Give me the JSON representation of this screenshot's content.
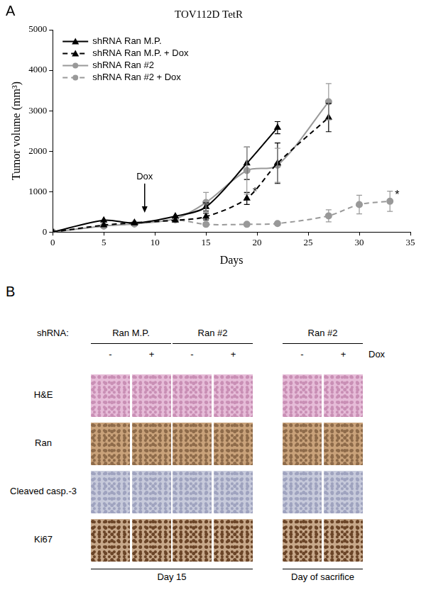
{
  "panel_labels": [
    "A",
    "B"
  ],
  "chart_data": {
    "type": "line",
    "title": "TOV112D TetR",
    "x_label": "Days",
    "y_label": "Tumor volume (mm³)",
    "xlim": [
      0,
      35
    ],
    "xticks": [
      0,
      5,
      10,
      15,
      20,
      25,
      30,
      35
    ],
    "ylim": [
      0,
      5000
    ],
    "yticks": [
      0,
      1000,
      2000,
      3000,
      4000,
      5000
    ],
    "grid": false,
    "legend": "upper left",
    "series": [
      {
        "name": "shRNA Ran M.P.",
        "color": "#000000",
        "marker": "triangle",
        "line_style": "solid",
        "x": [
          0,
          5,
          8,
          12,
          15,
          19,
          22
        ],
        "values": [
          0,
          290,
          220,
          390,
          620,
          1700,
          2580
        ],
        "errors": [
          null,
          null,
          null,
          null,
          100,
          400,
          150
        ]
      },
      {
        "name": "shRNA Ran M.P. + Dox",
        "color": "#000000",
        "marker": "triangle",
        "line_style": "dashed",
        "x": [
          0,
          5,
          8,
          12,
          15,
          19,
          22,
          27
        ],
        "values": [
          0,
          170,
          230,
          290,
          380,
          830,
          1700,
          2830
        ],
        "errors": [
          null,
          null,
          null,
          null,
          80,
          150,
          500,
          350
        ]
      },
      {
        "name": "shRNA Ran #2",
        "color": "#999999",
        "marker": "circle",
        "line_style": "solid",
        "x": [
          0,
          5,
          8,
          12,
          15,
          19,
          22,
          27
        ],
        "values": [
          0,
          150,
          200,
          330,
          730,
          1520,
          1650,
          3220
        ],
        "errors": [
          null,
          null,
          null,
          null,
          250,
          580,
          420,
          450
        ]
      },
      {
        "name": "shRNA Ran #2 + Dox",
        "color": "#999999",
        "marker": "circle",
        "line_style": "dashed",
        "x": [
          0,
          5,
          8,
          12,
          15,
          19,
          22,
          27,
          30,
          33
        ],
        "values": [
          0,
          150,
          200,
          300,
          190,
          190,
          210,
          400,
          680,
          760
        ],
        "errors": [
          null,
          null,
          null,
          null,
          null,
          null,
          null,
          150,
          230,
          250
        ]
      }
    ],
    "annotations": [
      {
        "text": "Dox",
        "x": 9,
        "y": 1250,
        "arrow": true
      },
      {
        "text": "*",
        "x": 19.8,
        "y": 830
      },
      {
        "text": "*",
        "x": 33.7,
        "y": 760
      }
    ]
  },
  "panel_b": {
    "shrna_label": "shRNA:",
    "dox_label": "Dox",
    "rows": [
      "H&E",
      "Ran",
      "Cleaved casp.-3",
      "Ki67"
    ],
    "sections": [
      {
        "label": "Day 15",
        "groups": [
          {
            "name": "Ran M.P.",
            "dox": [
              "-",
              "+"
            ]
          },
          {
            "name": "Ran #2",
            "dox": [
              "-",
              "+"
            ]
          }
        ]
      },
      {
        "label": "Day of sacrifice",
        "groups": [
          {
            "name": "Ran #2",
            "dox": [
              "-",
              "+"
            ]
          }
        ]
      }
    ]
  }
}
